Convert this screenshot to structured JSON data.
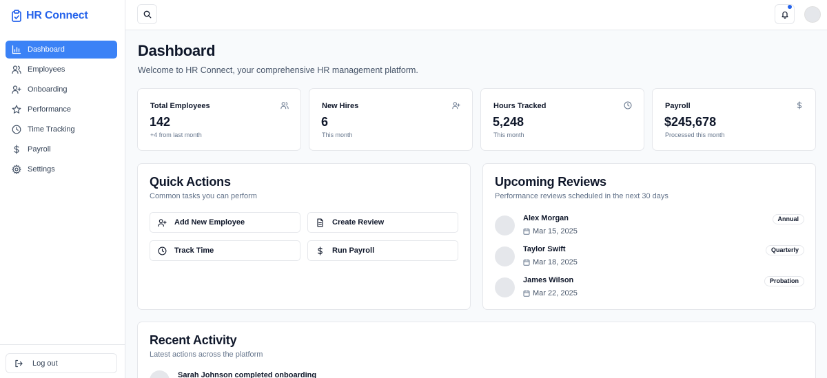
{
  "app": {
    "name": "HR Connect"
  },
  "sidebar": {
    "items": [
      {
        "label": "Dashboard",
        "icon": "bar-chart-icon",
        "active": true
      },
      {
        "label": "Employees",
        "icon": "users-icon"
      },
      {
        "label": "Onboarding",
        "icon": "user-plus-icon"
      },
      {
        "label": "Performance",
        "icon": "star-icon"
      },
      {
        "label": "Time Tracking",
        "icon": "clock-icon"
      },
      {
        "label": "Payroll",
        "icon": "dollar-icon"
      },
      {
        "label": "Settings",
        "icon": "gear-icon"
      }
    ],
    "logout_label": "Log out"
  },
  "header": {
    "notification_dot_color": "#2563eb"
  },
  "main": {
    "title": "Dashboard",
    "subtitle": "Welcome to HR Connect, your comprehensive HR management platform.",
    "stats": [
      {
        "label": "Total Employees",
        "value": "142",
        "note": "+4 from last month",
        "icon": "users-icon"
      },
      {
        "label": "New Hires",
        "value": "6",
        "note": "This month",
        "icon": "user-plus-icon"
      },
      {
        "label": "Hours Tracked",
        "value": "5,248",
        "note": "This month",
        "icon": "clock-icon"
      },
      {
        "label": "Payroll",
        "value": "$245,678",
        "note": "Processed this month",
        "icon": "dollar-icon"
      }
    ],
    "quick_actions": {
      "title": "Quick Actions",
      "subtitle": "Common tasks you can perform",
      "buttons": [
        {
          "label": "Add New Employee",
          "icon": "user-plus-icon"
        },
        {
          "label": "Create Review",
          "icon": "document-icon"
        },
        {
          "label": "Track Time",
          "icon": "clock-icon"
        },
        {
          "label": "Run Payroll",
          "icon": "dollar-icon"
        }
      ]
    },
    "upcoming_reviews": {
      "title": "Upcoming Reviews",
      "subtitle": "Performance reviews scheduled in the next 30 days",
      "items": [
        {
          "name": "Alex Morgan",
          "date": "Mar 15, 2025",
          "type": "Annual"
        },
        {
          "name": "Taylor Swift",
          "date": "Mar 18, 2025",
          "type": "Quarterly"
        },
        {
          "name": "James Wilson",
          "date": "Mar 22, 2025",
          "type": "Probation"
        }
      ]
    },
    "recent_activity": {
      "title": "Recent Activity",
      "subtitle": "Latest actions across the platform",
      "items": [
        {
          "text": "Sarah Johnson completed onboarding"
        }
      ]
    }
  },
  "colors": {
    "accent": "#3b82f6",
    "brand": "#2563eb"
  }
}
